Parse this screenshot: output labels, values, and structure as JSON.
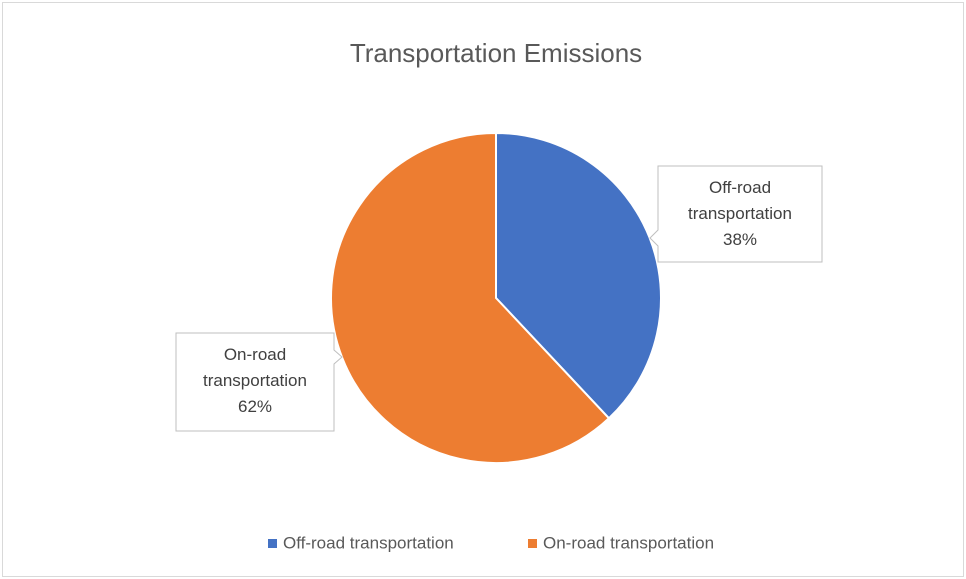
{
  "chart_data": {
    "type": "pie",
    "title": "Transportation Emissions",
    "categories": [
      "Off-road transportation",
      "On-road transportation"
    ],
    "values": [
      38,
      62
    ],
    "value_labels": [
      "38%",
      "62%"
    ],
    "colors": [
      "#4472c4",
      "#ed7d31"
    ],
    "legend": "bottom"
  }
}
